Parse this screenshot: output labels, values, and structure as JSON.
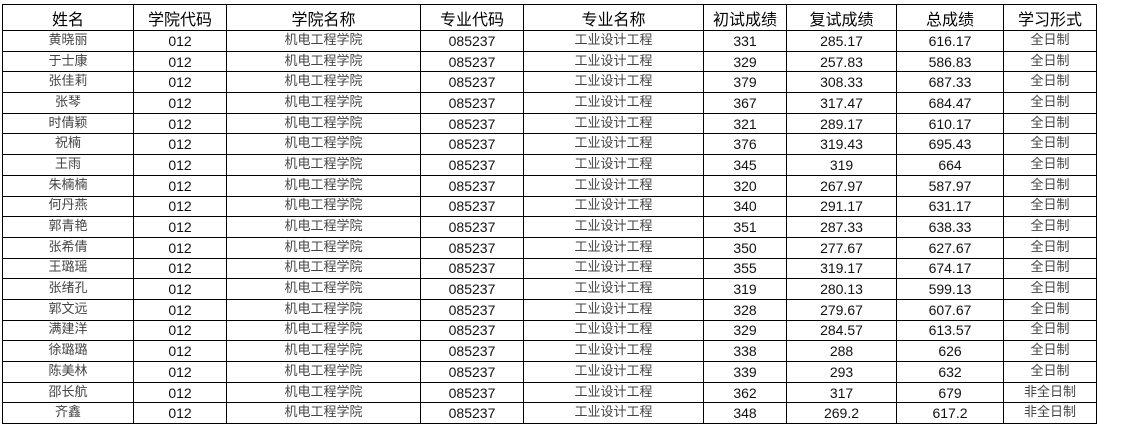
{
  "table": {
    "headers": [
      "姓名",
      "学院代码",
      "学院名称",
      "专业代码",
      "专业名称",
      "初试成绩",
      "复试成绩",
      "总成绩",
      "学习形式"
    ],
    "rows": [
      [
        "黄晓丽",
        "012",
        "机电工程学院",
        "085237",
        "工业设计工程",
        "331",
        "285.17",
        "616.17",
        "全日制"
      ],
      [
        "于士康",
        "012",
        "机电工程学院",
        "085237",
        "工业设计工程",
        "329",
        "257.83",
        "586.83",
        "全日制"
      ],
      [
        "张佳莉",
        "012",
        "机电工程学院",
        "085237",
        "工业设计工程",
        "379",
        "308.33",
        "687.33",
        "全日制"
      ],
      [
        "张琴",
        "012",
        "机电工程学院",
        "085237",
        "工业设计工程",
        "367",
        "317.47",
        "684.47",
        "全日制"
      ],
      [
        "时倩颖",
        "012",
        "机电工程学院",
        "085237",
        "工业设计工程",
        "321",
        "289.17",
        "610.17",
        "全日制"
      ],
      [
        "祝楠",
        "012",
        "机电工程学院",
        "085237",
        "工业设计工程",
        "376",
        "319.43",
        "695.43",
        "全日制"
      ],
      [
        "王雨",
        "012",
        "机电工程学院",
        "085237",
        "工业设计工程",
        "345",
        "319",
        "664",
        "全日制"
      ],
      [
        "朱楠楠",
        "012",
        "机电工程学院",
        "085237",
        "工业设计工程",
        "320",
        "267.97",
        "587.97",
        "全日制"
      ],
      [
        "何丹燕",
        "012",
        "机电工程学院",
        "085237",
        "工业设计工程",
        "340",
        "291.17",
        "631.17",
        "全日制"
      ],
      [
        "郭青艳",
        "012",
        "机电工程学院",
        "085237",
        "工业设计工程",
        "351",
        "287.33",
        "638.33",
        "全日制"
      ],
      [
        "张希倩",
        "012",
        "机电工程学院",
        "085237",
        "工业设计工程",
        "350",
        "277.67",
        "627.67",
        "全日制"
      ],
      [
        "王璐瑶",
        "012",
        "机电工程学院",
        "085237",
        "工业设计工程",
        "355",
        "319.17",
        "674.17",
        "全日制"
      ],
      [
        "张绪孔",
        "012",
        "机电工程学院",
        "085237",
        "工业设计工程",
        "319",
        "280.13",
        "599.13",
        "全日制"
      ],
      [
        "郭文远",
        "012",
        "机电工程学院",
        "085237",
        "工业设计工程",
        "328",
        "279.67",
        "607.67",
        "全日制"
      ],
      [
        "满建洋",
        "012",
        "机电工程学院",
        "085237",
        "工业设计工程",
        "329",
        "284.57",
        "613.57",
        "全日制"
      ],
      [
        "徐璐璐",
        "012",
        "机电工程学院",
        "085237",
        "工业设计工程",
        "338",
        "288",
        "626",
        "全日制"
      ],
      [
        "陈美林",
        "012",
        "机电工程学院",
        "085237",
        "工业设计工程",
        "339",
        "293",
        "632",
        "全日制"
      ],
      [
        "邵长航",
        "012",
        "机电工程学院",
        "085237",
        "工业设计工程",
        "362",
        "317",
        "679",
        "非全日制"
      ],
      [
        "齐鑫",
        "012",
        "机电工程学院",
        "085237",
        "工业设计工程",
        "348",
        "269.2",
        "617.2",
        "非全日制"
      ]
    ]
  }
}
